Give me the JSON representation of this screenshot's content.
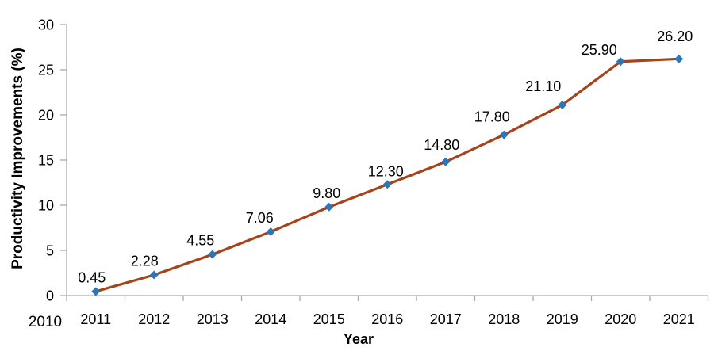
{
  "chart_data": {
    "type": "line",
    "title": "",
    "xlabel": "Year",
    "ylabel": "Productivity Improvements (%)",
    "x_axis_labels": [
      "2010",
      "2011",
      "2012",
      "2013",
      "2014",
      "2015",
      "2016",
      "2017",
      "2018",
      "2019",
      "2020",
      "2021"
    ],
    "categories": [
      "2011",
      "2012",
      "2013",
      "2014",
      "2015",
      "2016",
      "2017",
      "2018",
      "2019",
      "2020",
      "2021"
    ],
    "series": [
      {
        "name": "Productivity Improvements (%)",
        "values": [
          0.45,
          2.28,
          4.55,
          7.06,
          9.8,
          12.3,
          14.8,
          17.8,
          21.1,
          25.9,
          26.2
        ],
        "line_color": "#A5441A",
        "marker": "diamond",
        "marker_color": "#2E75B6"
      }
    ],
    "data_labels": [
      "0.45",
      "2.28",
      "4.55",
      "7.06",
      "9.80",
      "12.30",
      "14.80",
      "17.80",
      "21.10",
      "25.90",
      "26.20"
    ],
    "ylim": [
      0,
      30
    ],
    "ytick_interval": 5,
    "ytick_labels": [
      "0",
      "5",
      "10",
      "15",
      "20",
      "25",
      "30"
    ],
    "grid": false,
    "legend": "none",
    "axis_color": "#ABABAB",
    "text_color": "#000000",
    "label_offsets": {
      "dx": [
        -5,
        -12,
        -15,
        -14,
        -3,
        -2,
        -5,
        -15,
        -24,
        -27,
        -5
      ],
      "dy": [
        -18,
        -18,
        -18,
        -18,
        -18,
        -17,
        -22,
        -23,
        -24,
        -15,
        -29
      ]
    }
  }
}
